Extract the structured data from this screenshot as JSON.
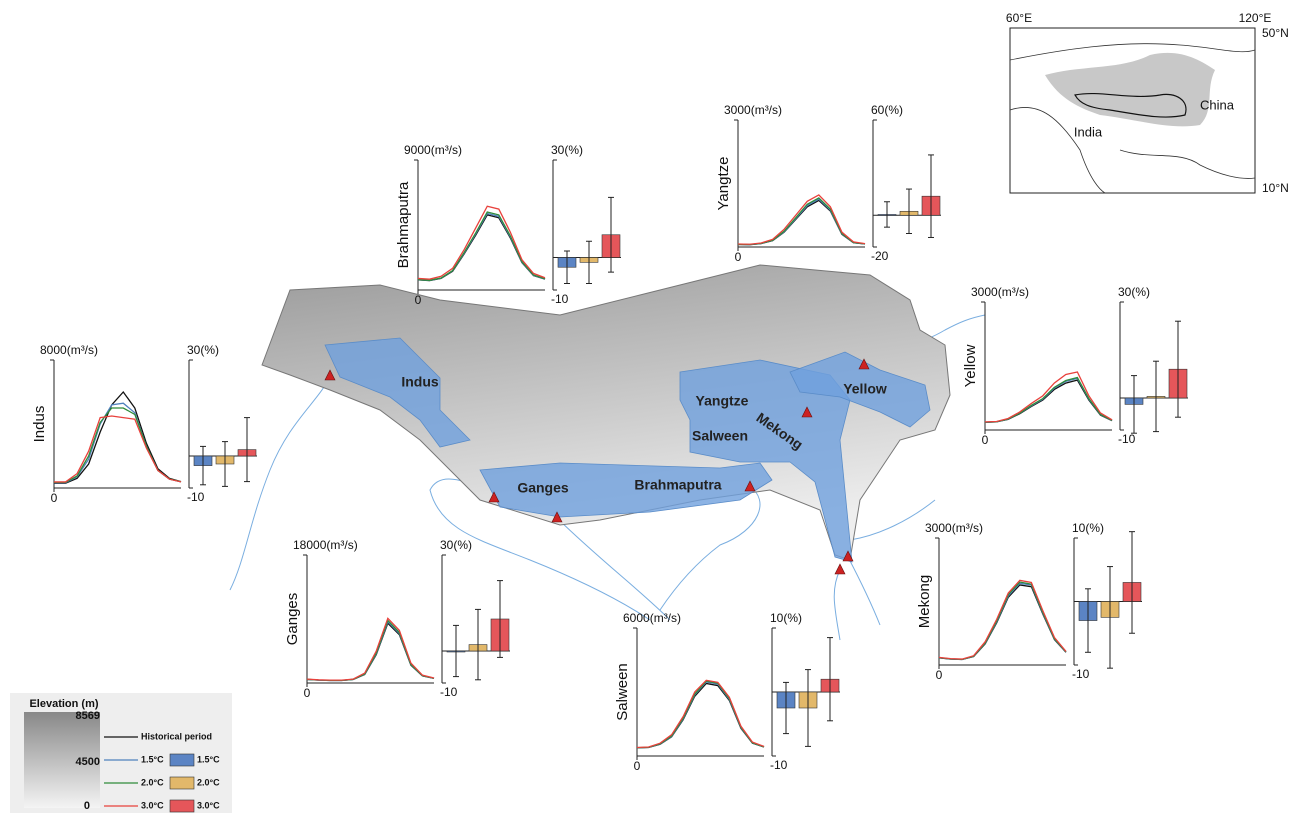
{
  "chart_data": [
    {
      "type": "line",
      "title": "Indus",
      "x": [
        0,
        1,
        2,
        3,
        4,
        5,
        6,
        7,
        8,
        9,
        10,
        11
      ],
      "xlim": [
        0,
        11
      ],
      "xticks": [
        0
      ],
      "ylim": [
        0,
        8000
      ],
      "yticks": [
        {
          "value": 8000,
          "label": "8000(m³/s)"
        }
      ],
      "series": [
        {
          "color": "#111111",
          "values": [
            300,
            300,
            600,
            1500,
            3500,
            5200,
            6000,
            5000,
            2800,
            1200,
            600,
            400
          ]
        },
        {
          "color": "#4f81bd",
          "values": [
            330,
            330,
            700,
            1800,
            4000,
            5200,
            5300,
            4700,
            2600,
            1100,
            550,
            380
          ]
        },
        {
          "color": "#2e8b3a",
          "values": [
            350,
            350,
            750,
            2000,
            4100,
            5000,
            5000,
            4600,
            2600,
            1100,
            560,
            390
          ]
        },
        {
          "color": "#e8413c",
          "values": [
            380,
            380,
            900,
            2300,
            4400,
            4500,
            4400,
            4300,
            2500,
            1100,
            550,
            380
          ]
        }
      ]
    },
    {
      "type": "bar",
      "ylim": [
        -10,
        30
      ],
      "yticks": [
        {
          "value": 30,
          "label": "30(%)"
        },
        -10
      ],
      "series": [
        {
          "color": "#5b84c4",
          "values": [
            -3
          ],
          "errors": [
            6
          ]
        },
        {
          "color": "#e2b86a",
          "values": [
            -2.5
          ],
          "errors": [
            7
          ]
        },
        {
          "color": "#e5565a",
          "values": [
            2
          ],
          "errors": [
            10
          ]
        }
      ]
    },
    {
      "type": "line",
      "title": "Brahmaputra",
      "x": [
        0,
        1,
        2,
        3,
        4,
        5,
        6,
        7,
        8,
        9,
        10,
        11
      ],
      "xlim": [
        0,
        11
      ],
      "xticks": [
        0
      ],
      "ylim": [
        0,
        9000
      ],
      "yticks": [
        {
          "value": 9000,
          "label": "9000(m³/s)"
        }
      ],
      "series": [
        {
          "color": "#111111",
          "values": [
            700,
            650,
            800,
            1300,
            2500,
            3800,
            5200,
            5000,
            3600,
            1900,
            1000,
            750
          ]
        },
        {
          "color": "#4f81bd",
          "values": [
            710,
            660,
            820,
            1330,
            2550,
            3880,
            5300,
            5100,
            3670,
            1940,
            1020,
            760
          ]
        },
        {
          "color": "#2e8b3a",
          "values": [
            720,
            670,
            830,
            1350,
            2600,
            3950,
            5400,
            5200,
            3740,
            1970,
            1040,
            780
          ]
        },
        {
          "color": "#e8413c",
          "values": [
            800,
            750,
            950,
            1500,
            2800,
            4300,
            5800,
            5600,
            4000,
            2100,
            1150,
            850
          ]
        }
      ]
    },
    {
      "type": "bar",
      "ylim": [
        -10,
        30
      ],
      "yticks": [
        {
          "value": 30,
          "label": "30(%)"
        },
        -10
      ],
      "series": [
        {
          "color": "#5b84c4",
          "values": [
            -3
          ],
          "errors": [
            5
          ]
        },
        {
          "color": "#e2b86a",
          "values": [
            -1.5
          ],
          "errors": [
            6.5
          ]
        },
        {
          "color": "#e5565a",
          "values": [
            7
          ],
          "errors": [
            11.5
          ]
        }
      ]
    },
    {
      "type": "line",
      "title": "Yangtze",
      "x": [
        0,
        1,
        2,
        3,
        4,
        5,
        6,
        7,
        8,
        9,
        10,
        11
      ],
      "xlim": [
        0,
        11
      ],
      "xticks": [
        0
      ],
      "ylim": [
        0,
        3000
      ],
      "yticks": [
        {
          "value": 3000,
          "label": "3000(m³/s)"
        }
      ],
      "series": [
        {
          "color": "#111111",
          "values": [
            60,
            55,
            80,
            150,
            350,
            650,
            950,
            1100,
            850,
            300,
            100,
            70
          ]
        },
        {
          "color": "#4f81bd",
          "values": [
            62,
            57,
            83,
            155,
            360,
            670,
            980,
            1130,
            870,
            310,
            103,
            72
          ]
        },
        {
          "color": "#2e8b3a",
          "values": [
            64,
            59,
            86,
            160,
            375,
            690,
            1010,
            1160,
            895,
            320,
            106,
            74
          ]
        },
        {
          "color": "#e8413c",
          "values": [
            70,
            65,
            95,
            180,
            420,
            750,
            1080,
            1230,
            950,
            350,
            120,
            80
          ]
        }
      ]
    },
    {
      "type": "bar",
      "ylim": [
        -20,
        60
      ],
      "yticks": [
        {
          "value": 60,
          "label": "60(%)"
        },
        -20
      ],
      "series": [
        {
          "color": "#5b84c4",
          "values": [
            0.5
          ],
          "errors": [
            8
          ]
        },
        {
          "color": "#e2b86a",
          "values": [
            2.5
          ],
          "errors": [
            14
          ]
        },
        {
          "color": "#e5565a",
          "values": [
            12
          ],
          "errors": [
            26
          ]
        }
      ]
    },
    {
      "type": "line",
      "title": "Yellow",
      "x": [
        0,
        1,
        2,
        3,
        4,
        5,
        6,
        7,
        8,
        9,
        10,
        11
      ],
      "xlim": [
        0,
        11
      ],
      "xticks": [
        0
      ],
      "ylim": [
        0,
        3000
      ],
      "yticks": [
        {
          "value": 3000,
          "label": "3000(m³/s)"
        }
      ],
      "series": [
        {
          "color": "#111111",
          "values": [
            180,
            190,
            250,
            380,
            550,
            700,
            950,
            1100,
            1170,
            700,
            350,
            220
          ]
        },
        {
          "color": "#4f81bd",
          "values": [
            182,
            192,
            255,
            390,
            565,
            720,
            980,
            1140,
            1210,
            720,
            360,
            225
          ]
        },
        {
          "color": "#2e8b3a",
          "values": [
            184,
            194,
            258,
            395,
            575,
            735,
            1000,
            1160,
            1230,
            735,
            365,
            228
          ]
        },
        {
          "color": "#e8413c",
          "values": [
            190,
            200,
            270,
            420,
            620,
            800,
            1100,
            1300,
            1360,
            800,
            400,
            240
          ]
        }
      ]
    },
    {
      "type": "bar",
      "ylim": [
        -10,
        30
      ],
      "yticks": [
        {
          "value": 30,
          "label": "30(%)"
        },
        -10
      ],
      "series": [
        {
          "color": "#5b84c4",
          "values": [
            -2
          ],
          "errors": [
            9
          ]
        },
        {
          "color": "#e2b86a",
          "values": [
            0.5
          ],
          "errors": [
            11
          ]
        },
        {
          "color": "#e5565a",
          "values": [
            9
          ],
          "errors": [
            15
          ]
        }
      ]
    },
    {
      "type": "line",
      "title": "Ganges",
      "x": [
        0,
        1,
        2,
        3,
        4,
        5,
        6,
        7,
        8,
        9,
        10,
        11
      ],
      "xlim": [
        0,
        11
      ],
      "xticks": [
        0
      ],
      "ylim": [
        0,
        18000
      ],
      "yticks": [
        {
          "value": 18000,
          "label": "18000(m³/s)"
        }
      ],
      "series": [
        {
          "color": "#111111",
          "values": [
            500,
            400,
            350,
            350,
            500,
            1200,
            4000,
            8400,
            6800,
            2500,
            1000,
            650
          ]
        },
        {
          "color": "#4f81bd",
          "values": [
            510,
            410,
            360,
            360,
            510,
            1230,
            4100,
            8600,
            6950,
            2550,
            1020,
            660
          ]
        },
        {
          "color": "#2e8b3a",
          "values": [
            520,
            420,
            365,
            365,
            520,
            1260,
            4200,
            8800,
            7100,
            2600,
            1040,
            670
          ]
        },
        {
          "color": "#e8413c",
          "values": [
            550,
            450,
            400,
            400,
            550,
            1400,
            4500,
            9100,
            7400,
            2800,
            1100,
            700
          ]
        }
      ]
    },
    {
      "type": "bar",
      "ylim": [
        -10,
        30
      ],
      "yticks": [
        {
          "value": 30,
          "label": "30(%)"
        },
        -10
      ],
      "series": [
        {
          "color": "#5b84c4",
          "values": [
            0
          ],
          "errors": [
            8
          ]
        },
        {
          "color": "#e2b86a",
          "values": [
            2
          ],
          "errors": [
            11
          ]
        },
        {
          "color": "#e5565a",
          "values": [
            10
          ],
          "errors": [
            12
          ]
        }
      ]
    },
    {
      "type": "line",
      "title": "Salween",
      "x": [
        0,
        1,
        2,
        3,
        4,
        5,
        6,
        7,
        8,
        9,
        10,
        11
      ],
      "xlim": [
        0,
        11
      ],
      "xticks": [
        0
      ],
      "ylim": [
        0,
        6000
      ],
      "yticks": [
        {
          "value": 6000,
          "label": "6000(m³/s)"
        }
      ],
      "series": [
        {
          "color": "#111111",
          "values": [
            380,
            400,
            550,
            900,
            1700,
            2800,
            3400,
            3300,
            2600,
            1300,
            600,
            420
          ]
        },
        {
          "color": "#4f81bd",
          "values": [
            385,
            405,
            560,
            920,
            1740,
            2860,
            3470,
            3370,
            2650,
            1330,
            610,
            425
          ]
        },
        {
          "color": "#2e8b3a",
          "values": [
            390,
            410,
            570,
            940,
            1770,
            2900,
            3510,
            3410,
            2690,
            1350,
            620,
            430
          ]
        },
        {
          "color": "#e8413c",
          "values": [
            400,
            420,
            600,
            1000,
            1850,
            3000,
            3550,
            3450,
            2750,
            1400,
            650,
            450
          ]
        }
      ]
    },
    {
      "type": "bar",
      "ylim": [
        -10,
        10
      ],
      "yticks": [
        {
          "value": 10,
          "label": "10(%)"
        },
        -10
      ],
      "series": [
        {
          "color": "#5b84c4",
          "values": [
            -2.5
          ],
          "errors": [
            4
          ]
        },
        {
          "color": "#e2b86a",
          "values": [
            -2.5
          ],
          "errors": [
            6
          ]
        },
        {
          "color": "#e5565a",
          "values": [
            2
          ],
          "errors": [
            6.5
          ]
        }
      ]
    },
    {
      "type": "line",
      "title": "Mekong",
      "x": [
        0,
        1,
        2,
        3,
        4,
        5,
        6,
        7,
        8,
        9,
        10,
        11
      ],
      "xlim": [
        0,
        11
      ],
      "xticks": [
        0
      ],
      "ylim": [
        0,
        3000
      ],
      "yticks": [
        {
          "value": 3000,
          "label": "3000(m³/s)"
        }
      ],
      "series": [
        {
          "color": "#111111",
          "values": [
            170,
            140,
            130,
            200,
            500,
            1000,
            1600,
            1890,
            1850,
            1200,
            600,
            300
          ]
        },
        {
          "color": "#4f81bd",
          "values": [
            172,
            142,
            132,
            205,
            510,
            1020,
            1630,
            1930,
            1890,
            1220,
            610,
            305
          ]
        },
        {
          "color": "#2e8b3a",
          "values": [
            174,
            144,
            134,
            208,
            520,
            1040,
            1660,
            1960,
            1910,
            1240,
            620,
            310
          ]
        },
        {
          "color": "#e8413c",
          "values": [
            180,
            150,
            140,
            220,
            550,
            1080,
            1700,
            2000,
            1950,
            1280,
            650,
            320
          ]
        }
      ]
    },
    {
      "type": "bar",
      "ylim": [
        -10,
        10
      ],
      "yticks": [
        {
          "value": 10,
          "label": "10(%)"
        },
        -10
      ],
      "series": [
        {
          "color": "#5b84c4",
          "values": [
            -3
          ],
          "errors": [
            5
          ]
        },
        {
          "color": "#e2b86a",
          "values": [
            -2.5
          ],
          "errors": [
            8
          ]
        },
        {
          "color": "#e5565a",
          "values": [
            3
          ],
          "errors": [
            8
          ]
        }
      ]
    }
  ],
  "map": {
    "basins": [
      "Indus",
      "Ganges",
      "Brahmaputra",
      "Yangtze",
      "Mekong",
      "Salween",
      "Yellow"
    ],
    "inset": {
      "lon": [
        "60°E",
        "120°E"
      ],
      "lat": [
        "50°N",
        "10°N"
      ],
      "countries": [
        "India",
        "China"
      ]
    }
  },
  "legend": {
    "title": "Elevation (m)",
    "elevation_ticks": [
      8569,
      4500,
      0
    ],
    "line_items": [
      "Historical period",
      "1.5°C",
      "2.0°C",
      "3.0°C"
    ],
    "bar_items": [
      "1.5°C",
      "2.0°C",
      "3.0°C"
    ]
  }
}
